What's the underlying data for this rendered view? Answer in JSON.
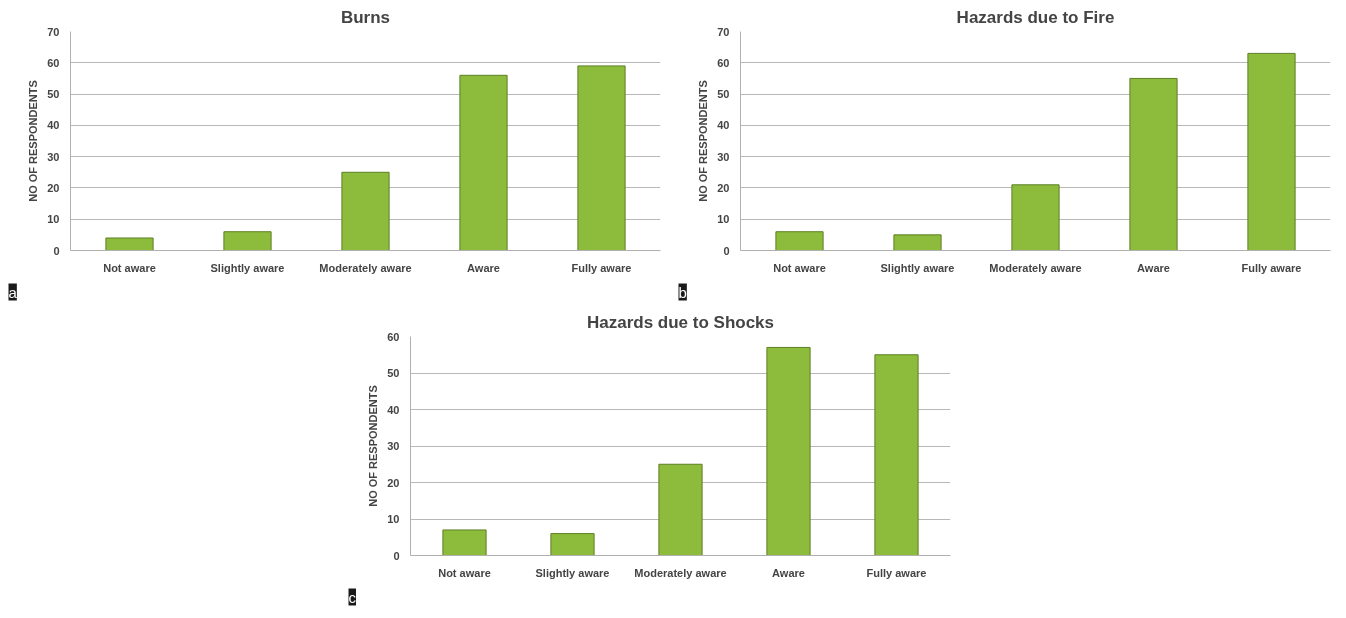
{
  "chart_data": [
    {
      "type": "bar",
      "title": "Burns",
      "ylabel": "NO OF RESPONDENTS",
      "categories": [
        "Not aware",
        "Slightly aware",
        "Moderately aware",
        "Aware",
        "Fully aware"
      ],
      "values": [
        4,
        6,
        25,
        56,
        59
      ],
      "color": "#8dbb3c",
      "ylim": [
        0,
        70
      ],
      "yticks": [
        0,
        10,
        20,
        30,
        40,
        50,
        60,
        70
      ],
      "grid": "y",
      "annotations": [
        "a"
      ]
    },
    {
      "type": "bar",
      "title": "Hazards due to Fire",
      "ylabel": "NO OF RESPONDENTS",
      "categories": [
        "Not aware",
        "Slightly aware",
        "Moderately aware",
        "Aware",
        "Fully aware"
      ],
      "values": [
        6,
        5,
        21,
        55,
        63
      ],
      "color": "#8dbb3c",
      "ylim": [
        0,
        70
      ],
      "yticks": [
        0,
        10,
        20,
        30,
        40,
        50,
        60,
        70
      ],
      "grid": "y",
      "annotations": [
        "b"
      ]
    },
    {
      "type": "bar",
      "title": "Hazards due to Shocks",
      "ylabel": "NO OF RESPONDENTS",
      "categories": [
        "Not aware",
        "Slightly aware",
        "Moderately aware",
        "Aware",
        "Fully aware"
      ],
      "values": [
        7,
        6,
        25,
        57,
        55
      ],
      "color": "#8dbb3c",
      "ylim": [
        0,
        60
      ],
      "yticks": [
        0,
        10,
        20,
        30,
        40,
        50,
        60
      ],
      "grid": "y",
      "annotations": [
        "c"
      ]
    }
  ]
}
